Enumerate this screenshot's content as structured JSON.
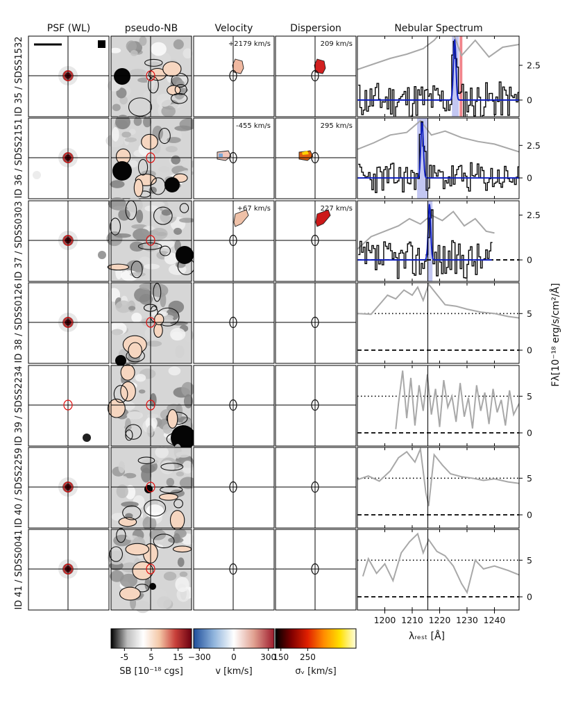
{
  "columns": [
    "PSF (WL)",
    "pseudo-NB",
    "Velocity",
    "Dispersion",
    "Nebular Spectrum"
  ],
  "rows": [
    {
      "label": "ID 35 / SDSS1532",
      "velocity": "+2179 km/s",
      "dispersion": "209 km/s",
      "has_map": true
    },
    {
      "label": "ID 36 / SDSS2151",
      "velocity": "-455 km/s",
      "dispersion": "295 km/s",
      "has_map": true
    },
    {
      "label": "ID 37 / SDSS0303",
      "velocity": "+67 km/s",
      "dispersion": "227 km/s",
      "has_map": true
    },
    {
      "label": "ID 38 / SDSS0126",
      "velocity": "",
      "dispersion": "",
      "has_map": false
    },
    {
      "label": "ID 39 / SDSS2234",
      "velocity": "",
      "dispersion": "",
      "has_map": false
    },
    {
      "label": "ID 40 / SDSS2259",
      "velocity": "",
      "dispersion": "",
      "has_map": false
    },
    {
      "label": "ID 41 / SDSS0041",
      "velocity": "",
      "dispersion": "",
      "has_map": false
    }
  ],
  "colorbars": [
    {
      "name": "sb",
      "label": "SB [10⁻¹⁸ cgs]",
      "ticks": [
        "-5",
        "5",
        "15"
      ],
      "tick_values": [
        -5,
        5,
        15
      ],
      "range": [
        -10,
        20
      ],
      "stops": [
        "#000000",
        "#bdbdbd",
        "#ffffff",
        "#f4c8a8",
        "#c8403a",
        "#6b0010"
      ]
    },
    {
      "name": "velocity",
      "label": "v [km/s]",
      "ticks": [
        "−300",
        "0",
        "300"
      ],
      "tick_values": [
        -300,
        0,
        300
      ],
      "range": [
        -350,
        350
      ],
      "stops": [
        "#1f4e9a",
        "#8fb4dc",
        "#ffffff",
        "#e0a090",
        "#9e1b2c"
      ]
    },
    {
      "name": "dispersion",
      "label": "σᵥ [km/s]",
      "ticks": [
        "150",
        "250"
      ],
      "tick_values": [
        150,
        250
      ],
      "range": [
        130,
        430
      ],
      "stops": [
        "#000000",
        "#800000",
        "#e02000",
        "#ff8c00",
        "#ffe000",
        "#ffffe0"
      ]
    }
  ],
  "chart_data": {
    "type": "line",
    "title": "Nebular Spectrum",
    "xlabel": "λᵣₑₛₜ [Å]",
    "ylabel": "Fλ[10⁻¹⁸ erg/s/cm²/Å]",
    "xlim": [
      1190,
      1249
    ],
    "xticks": [
      1200,
      1210,
      1220,
      1230,
      1240
    ],
    "line_center": 1215.7,
    "panels": [
      {
        "ylim": [
          -1.2,
          4.6
        ],
        "yticks": [
          "0",
          "2.5"
        ],
        "ytick_values": [
          0,
          2.5
        ],
        "baseline": 0,
        "baseline_style": "solid-blue",
        "offset_level": null,
        "vband": [
          1224.5,
          1227.0
        ],
        "pband": [
          1227.3,
          1228.3
        ],
        "fit_peak": 1225.5,
        "seed": 11,
        "noise": 1.1,
        "gray": {
          "x": [
            1190,
            1196,
            1202,
            1208,
            1214,
            1218,
            1222,
            1225,
            1228,
            1233,
            1238,
            1243,
            1249
          ],
          "y": [
            2.2,
            2.6,
            3.0,
            3.3,
            3.7,
            4.3,
            5.2,
            4.8,
            3.2,
            4.3,
            3.1,
            3.8,
            4.0
          ]
        }
      },
      {
        "ylim": [
          -1.6,
          4.6
        ],
        "yticks": [
          "0",
          "2.5"
        ],
        "ytick_values": [
          0,
          2.5
        ],
        "baseline": 0,
        "baseline_style": "solid-blue",
        "offset_level": null,
        "vband": [
          1211.8,
          1215.8
        ],
        "pband": null,
        "fit_peak": 1213.6,
        "seed": 23,
        "noise": 1.0,
        "gray": {
          "x": [
            1190,
            1196,
            1202,
            1208,
            1213,
            1217,
            1222,
            1228,
            1234,
            1240,
            1249
          ],
          "y": [
            2.2,
            2.7,
            3.3,
            3.5,
            4.4,
            3.3,
            3.6,
            3.1,
            2.8,
            2.6,
            2.0
          ]
        }
      },
      {
        "ylim": [
          -1.2,
          3.3
        ],
        "yticks": [
          "0",
          "2.5"
        ],
        "ytick_values": [
          0,
          2.5
        ],
        "baseline": 0,
        "baseline_style": "dashed",
        "offset_level": null,
        "vband": [
          1215.6,
          1217.4
        ],
        "pband": null,
        "fit_peak": 1216.3,
        "seed": 37,
        "noise": 0.9,
        "spec_xmax": 1239,
        "gray": {
          "x": [
            1190,
            1195,
            1200,
            1205,
            1209,
            1213,
            1217,
            1221,
            1225,
            1229,
            1233,
            1237,
            1240
          ],
          "y": [
            0.6,
            1.3,
            1.6,
            1.9,
            2.3,
            2.0,
            2.5,
            2.2,
            2.7,
            1.9,
            2.3,
            1.6,
            1.5
          ]
        }
      },
      {
        "ylim": [
          -1.8,
          9.2
        ],
        "yticks": [
          "0",
          "5"
        ],
        "ytick_values": [
          0,
          5
        ],
        "baseline": 0,
        "baseline_style": "dashed",
        "offset_level": 5,
        "vband": null,
        "pband": null,
        "fit_peak": null,
        "seed": 41,
        "noise": 0,
        "gray": {
          "x": [
            1190,
            1195,
            1198,
            1201,
            1204,
            1207,
            1210,
            1212,
            1214,
            1216,
            1219,
            1222,
            1226,
            1230,
            1235,
            1240,
            1245,
            1249
          ],
          "y": [
            5.0,
            4.9,
            6.2,
            7.5,
            7.0,
            8.2,
            7.5,
            8.6,
            6.8,
            9.0,
            7.6,
            6.2,
            6.0,
            5.6,
            5.2,
            5.0,
            4.6,
            4.4
          ]
        }
      },
      {
        "ylim": [
          -1.8,
          9.2
        ],
        "yticks": [
          "0",
          "5"
        ],
        "ytick_values": [
          0,
          5
        ],
        "baseline": 0,
        "baseline_style": "dashed",
        "offset_level": 5,
        "vband": null,
        "pband": null,
        "fit_peak": null,
        "seed": 53,
        "noise": 0,
        "gray": {
          "x": [
            1204,
            1205,
            1206.5,
            1208,
            1209.5,
            1211,
            1212.5,
            1214,
            1215.5,
            1217,
            1218.5,
            1220,
            1221.5,
            1223,
            1224.5,
            1226,
            1227.5,
            1229,
            1230.5,
            1232,
            1233.5,
            1235,
            1236.5,
            1238,
            1239.5,
            1241,
            1242.5,
            1244,
            1245.5,
            1247,
            1249
          ],
          "y": [
            0.5,
            4.0,
            8.5,
            2.0,
            7.5,
            1.0,
            6.5,
            3.0,
            8.0,
            2.5,
            6.0,
            0.8,
            7.2,
            3.5,
            5.0,
            1.5,
            6.8,
            2.2,
            4.8,
            0.6,
            6.5,
            3.0,
            5.5,
            1.2,
            6.0,
            2.8,
            4.5,
            1.0,
            5.8,
            2.5,
            4.0
          ]
        }
      },
      {
        "ylim": [
          -1.8,
          9.2
        ],
        "yticks": [
          "0",
          "5"
        ],
        "ytick_values": [
          0,
          5
        ],
        "baseline": 0,
        "baseline_style": "dashed",
        "offset_level": 5,
        "vband": null,
        "pband": null,
        "fit_peak": null,
        "seed": 67,
        "noise": 0,
        "gray": {
          "x": [
            1190,
            1194,
            1198,
            1202,
            1205,
            1208,
            1211,
            1213,
            1215,
            1216,
            1218,
            1221,
            1224,
            1228,
            1232,
            1236,
            1240,
            1245,
            1249
          ],
          "y": [
            4.8,
            5.3,
            4.6,
            6.0,
            7.8,
            8.6,
            7.2,
            9.0,
            3.0,
            1.2,
            8.2,
            6.8,
            5.6,
            5.2,
            5.0,
            4.7,
            4.9,
            4.5,
            4.3
          ]
        }
      },
      {
        "ylim": [
          -1.8,
          9.2
        ],
        "yticks": [
          "0",
          "5"
        ],
        "ytick_values": [
          0,
          5
        ],
        "baseline": 0,
        "baseline_style": "dashed",
        "offset_level": 5,
        "vband": null,
        "pband": null,
        "fit_peak": null,
        "seed": 71,
        "noise": 0,
        "gray": {
          "x": [
            1192,
            1194,
            1197,
            1200,
            1203,
            1206,
            1209,
            1212,
            1214,
            1216,
            1219,
            1222,
            1225,
            1228,
            1230,
            1233,
            1236,
            1240,
            1245,
            1249
          ],
          "y": [
            2.8,
            5.2,
            3.2,
            4.5,
            2.2,
            6.0,
            7.5,
            8.6,
            6.0,
            7.8,
            6.2,
            5.6,
            4.2,
            1.8,
            0.6,
            5.0,
            3.8,
            4.2,
            3.6,
            3.0
          ]
        }
      }
    ]
  }
}
